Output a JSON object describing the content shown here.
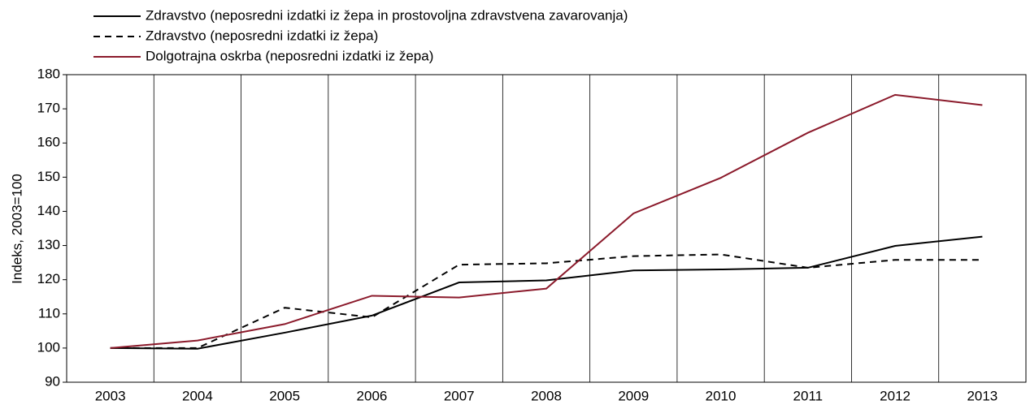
{
  "chart_data": {
    "type": "line",
    "y_label": "Indeks, 2003=100",
    "categories": [
      "2003",
      "2004",
      "2005",
      "2006",
      "2007",
      "2008",
      "2009",
      "2010",
      "2011",
      "2012",
      "2013"
    ],
    "series": [
      {
        "name": "Zdravstvo (neposredni izdatki iz žepa in prostovoljna zdravstvena zavarovanja)",
        "color": "#000000",
        "dashed": false,
        "values": [
          100,
          99.8,
          104.5,
          109.5,
          119.2,
          119.8,
          122.7,
          123,
          123.5,
          129.9,
          132.6
        ]
      },
      {
        "name": "Zdravstvo (neposredni izdatki iz žepa)",
        "color": "#000000",
        "dashed": true,
        "values": [
          100,
          100,
          111.8,
          109,
          124.4,
          124.8,
          126.9,
          127.4,
          123.5,
          125.8,
          125.8
        ]
      },
      {
        "name": "Dolgotrajna oskrba (neposredni izdatki iz žepa)",
        "color": "#8b1a2b",
        "dashed": false,
        "values": [
          100,
          102.2,
          107,
          115.3,
          114.8,
          117.4,
          139.4,
          149.8,
          163,
          174.1,
          171.1
        ]
      }
    ],
    "ylim": [
      90,
      180
    ],
    "yticks": [
      90,
      100,
      110,
      120,
      130,
      140,
      150,
      160,
      170,
      180
    ],
    "grid": false
  }
}
